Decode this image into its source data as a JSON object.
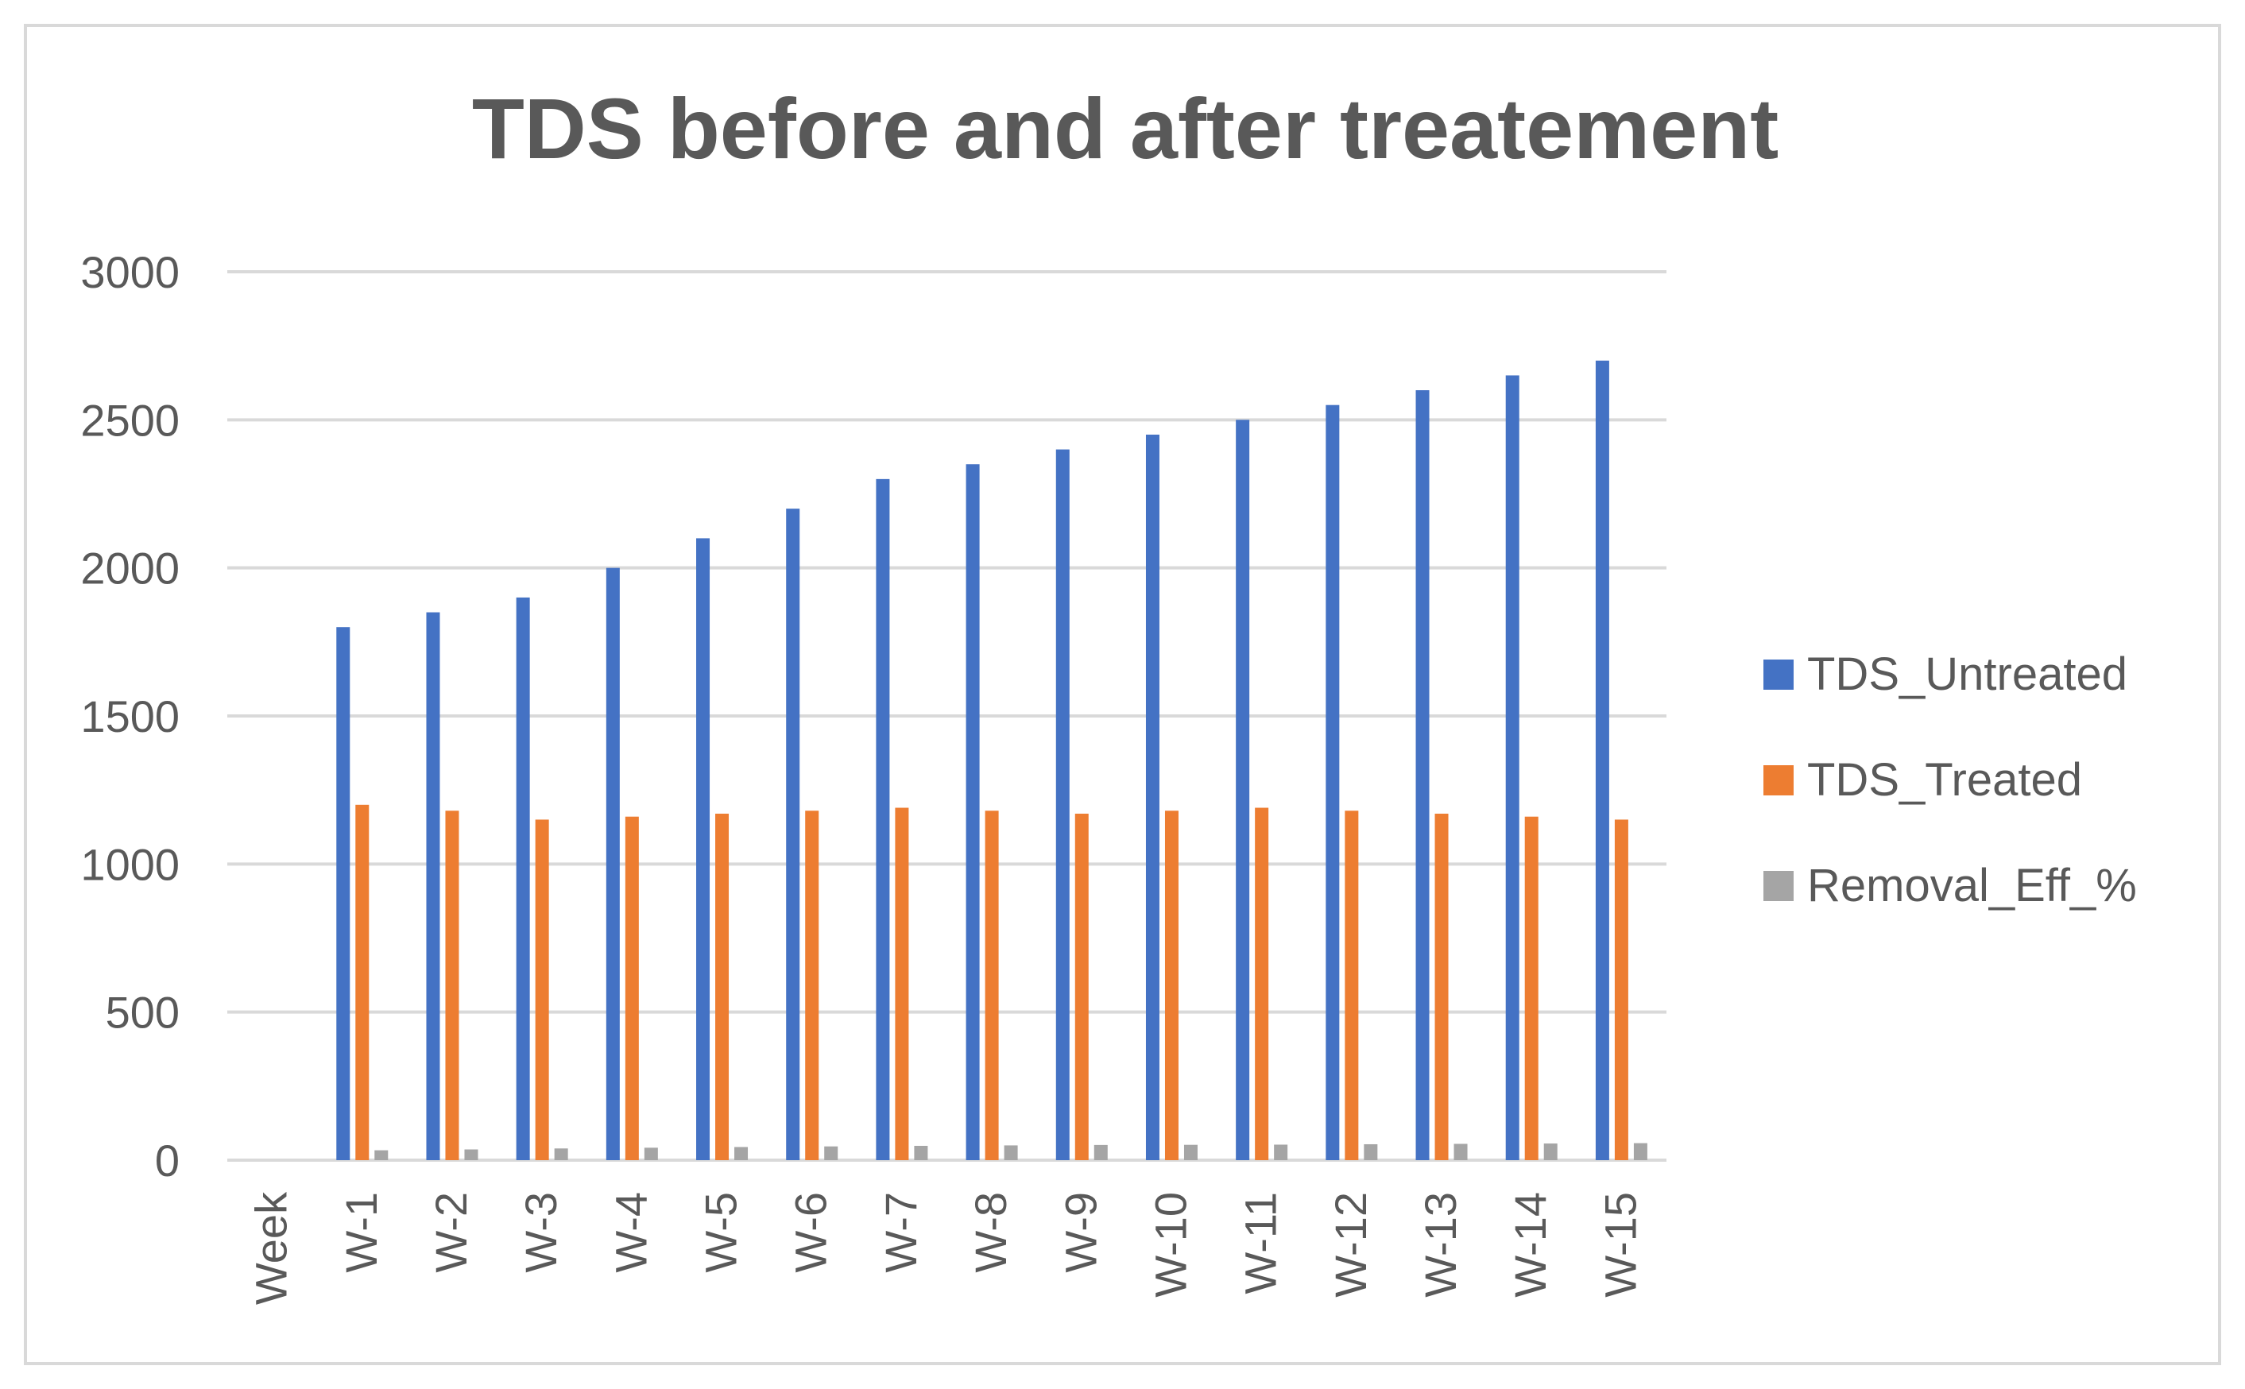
{
  "chart_data": {
    "type": "bar",
    "title": "TDS before and after treatement",
    "xlabel": "",
    "ylabel": "",
    "categories": [
      "Week",
      "W-1",
      "W-2",
      "W-3",
      "W-4",
      "W-5",
      "W-6",
      "W-7",
      "W-8",
      "W-9",
      "W-10",
      "W-11",
      "W-12",
      "W-13",
      "W-14",
      "W-15"
    ],
    "series": [
      {
        "name": "TDS_Untreated",
        "color": "#4472c4",
        "values": [
          null,
          1800,
          1850,
          1900,
          2000,
          2100,
          2200,
          2300,
          2350,
          2400,
          2450,
          2500,
          2550,
          2600,
          2650,
          2700
        ]
      },
      {
        "name": "TDS_Treated",
        "color": "#ed7d31",
        "values": [
          null,
          1200,
          1180,
          1150,
          1160,
          1170,
          1180,
          1190,
          1180,
          1170,
          1180,
          1190,
          1180,
          1170,
          1160,
          1150
        ]
      },
      {
        "name": "Removal_Eff_%",
        "color": "#a5a5a5",
        "values": [
          null,
          33.3,
          36.2,
          39.5,
          42.0,
          44.3,
          46.4,
          48.3,
          49.8,
          51.3,
          51.8,
          52.4,
          53.7,
          55.0,
          56.2,
          57.4
        ]
      }
    ],
    "ylim": [
      0,
      3000
    ],
    "yticks": [
      "0",
      "500",
      "1000",
      "1500",
      "2000",
      "2500",
      "3000"
    ],
    "grid": true,
    "legend_position": "right"
  }
}
